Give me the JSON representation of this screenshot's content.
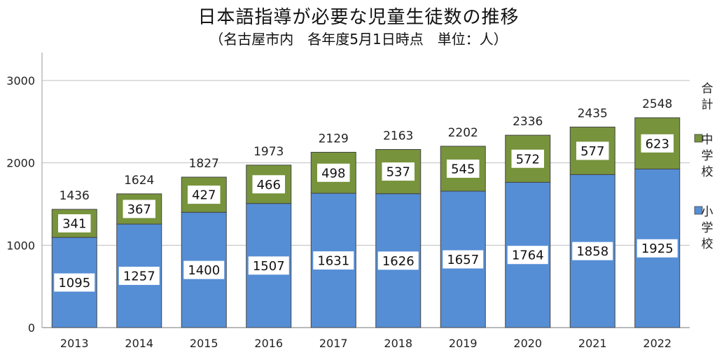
{
  "chart_data": {
    "type": "bar",
    "stacked": true,
    "title": "日本語指導が必要な児童生徒数の推移",
    "subtitle": "（名古屋市内　各年度5月1日時点　単位：人）",
    "categories": [
      "2013",
      "2014",
      "2015",
      "2016",
      "2017",
      "2018",
      "2019",
      "2020",
      "2021",
      "2022"
    ],
    "series": [
      {
        "name": "小学校",
        "color": "#558ED5",
        "values": [
          1095,
          1257,
          1400,
          1507,
          1631,
          1626,
          1657,
          1764,
          1858,
          1925
        ]
      },
      {
        "name": "中学校",
        "color": "#77933C",
        "values": [
          341,
          367,
          427,
          466,
          498,
          537,
          545,
          572,
          577,
          623
        ]
      }
    ],
    "totals_label": "合計",
    "totals": [
      1436,
      1624,
      1827,
      1973,
      2129,
      2163,
      2202,
      2336,
      2435,
      2548
    ],
    "ylim": [
      0,
      3000
    ],
    "yticks": [
      0,
      1000,
      2000,
      3000
    ],
    "grid": true,
    "legend": "right"
  }
}
